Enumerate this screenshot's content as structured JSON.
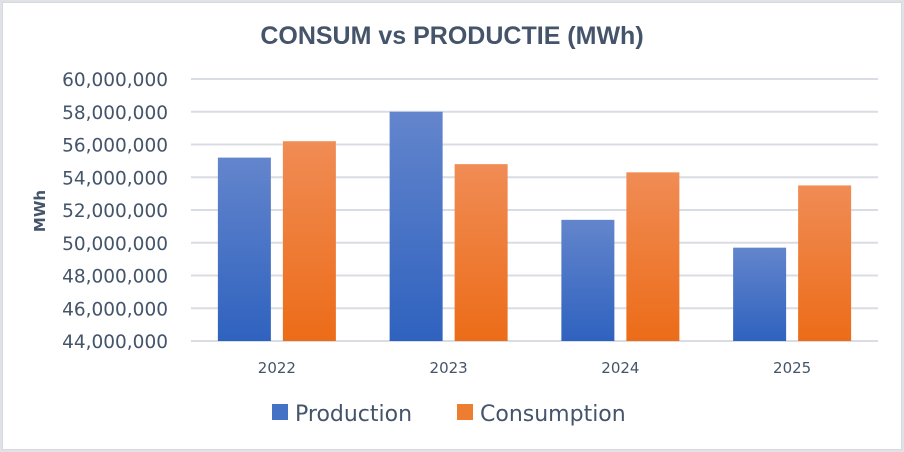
{
  "chart_data": {
    "type": "bar",
    "title": "CONSUM vs PRODUCTIE (MWh)",
    "xlabel": "",
    "ylabel": "MWh",
    "categories": [
      "2022",
      "2023",
      "2024",
      "2025"
    ],
    "series": [
      {
        "name": "Production",
        "color": "#4472c4",
        "values": [
          55200000,
          58000000,
          51400000,
          49700000
        ]
      },
      {
        "name": "Consumption",
        "color": "#ed7d31",
        "values": [
          56200000,
          54800000,
          54300000,
          53500000
        ]
      }
    ],
    "ylim": [
      44000000,
      60000000
    ],
    "yticks": [
      44000000,
      46000000,
      48000000,
      50000000,
      52000000,
      54000000,
      56000000,
      58000000,
      60000000
    ],
    "ytick_labels": [
      "44,000,000",
      "46,000,000",
      "48,000,000",
      "50,000,000",
      "52,000,000",
      "54,000,000",
      "56,000,000",
      "58,000,000",
      "60,000,000"
    ],
    "grid": true,
    "legend_position": "bottom"
  }
}
